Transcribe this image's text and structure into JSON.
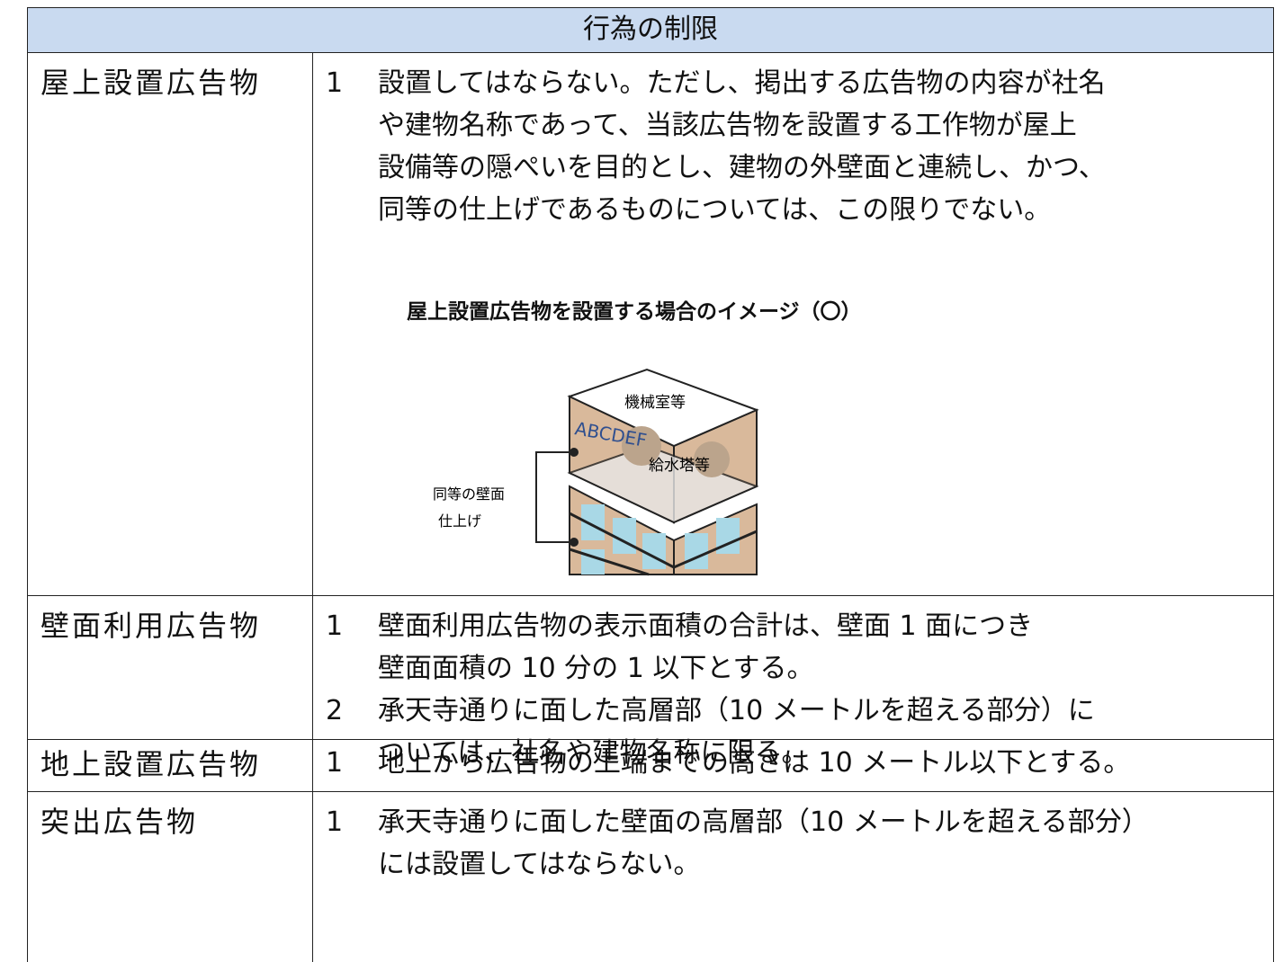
{
  "table": {
    "header": "行為の制限",
    "rows": [
      {
        "label": "屋上設置広告物",
        "items": [
          {
            "number": "1",
            "lines": [
              "設置してはならない。ただし、掲出する広告物の内容が社名",
              "や建物名称であって、当該広告物を設置する工作物が屋上",
              "設備等の隠ぺいを目的とし、建物の外壁面と連続し、かつ、",
              "同等の仕上げであるものについては、この限りでない。"
            ]
          }
        ],
        "figure": {
          "title": "屋上設置広告物を設置する場合のイメージ（〇）",
          "labels": {
            "machine_room": "機械室等",
            "sign": "ABCDEF",
            "water_tower": "給水塔等",
            "finish_1": "同等の壁面",
            "finish_2": "仕上げ"
          }
        }
      },
      {
        "label": "壁面利用広告物",
        "items": [
          {
            "number": "1",
            "lines": [
              "壁面利用広告物の表示面積の合計は、壁面 1 面につき",
              "壁面面積の 10 分の 1 以下とする。"
            ]
          },
          {
            "number": "2",
            "lines": [
              "承天寺通りに面した高層部（10 メートルを超える部分）に",
              "ついては、社名や建物名称に限る。"
            ]
          }
        ]
      },
      {
        "label": "地上設置広告物",
        "items": [
          {
            "number": "1",
            "lines": [
              "地上から広告物の上端までの高さは 10 メートル以下とする。"
            ]
          }
        ]
      },
      {
        "label": "突出広告物",
        "items": [
          {
            "number": "1",
            "lines": [
              "承天寺通りに面した壁面の高層部（10 メートルを超える部分）",
              "には設置してはならない。"
            ]
          }
        ]
      }
    ]
  }
}
